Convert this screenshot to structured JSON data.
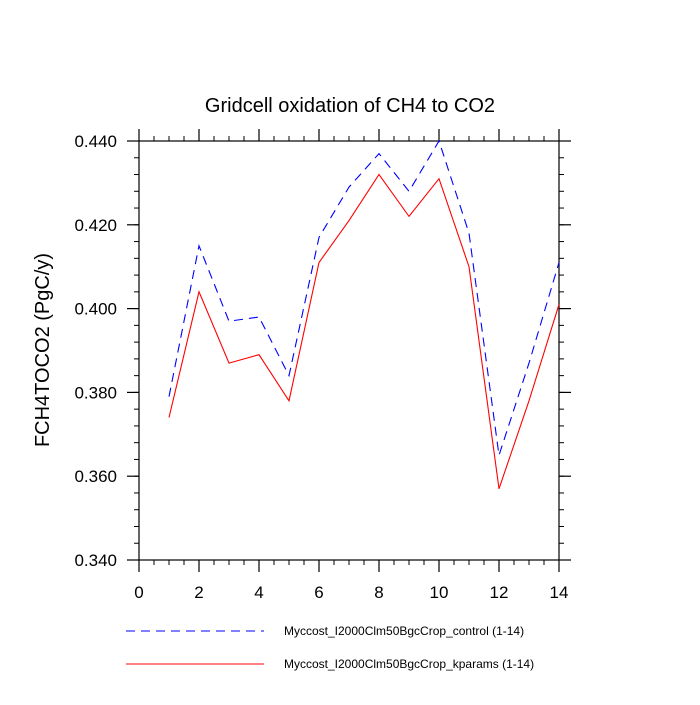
{
  "chart_data": {
    "type": "line",
    "title": "Gridcell oxidation of CH4 to CO2",
    "xlabel": "",
    "ylabel": "FCH4TOCO2  (PgC/y)",
    "xlim": [
      0,
      14
    ],
    "ylim": [
      0.34,
      0.44
    ],
    "x_ticks": [
      0,
      2,
      4,
      6,
      8,
      10,
      12,
      14
    ],
    "x_tick_labels": [
      "0",
      "2",
      "4",
      "6",
      "8",
      "10",
      "12",
      "14"
    ],
    "y_ticks": [
      0.34,
      0.36,
      0.38,
      0.4,
      0.42,
      0.44
    ],
    "y_tick_labels": [
      "0.340",
      "0.360",
      "0.380",
      "0.400",
      "0.420",
      "0.440"
    ],
    "x": [
      1,
      2,
      3,
      4,
      5,
      6,
      7,
      8,
      9,
      10,
      11,
      12,
      13,
      14
    ],
    "series": [
      {
        "name": "Myccost_I2000Clm50BgcCrop_control (1-14)",
        "color": "#0000ff",
        "dash": "dashed",
        "values": [
          0.379,
          0.415,
          0.397,
          0.398,
          0.384,
          0.417,
          0.429,
          0.437,
          0.428,
          0.44,
          0.418,
          0.365,
          0.387,
          0.411
        ]
      },
      {
        "name": "Myccost_I2000Clm50BgcCrop_kparams (1-14)",
        "color": "#ff0000",
        "dash": "solid",
        "values": [
          0.374,
          0.404,
          0.387,
          0.389,
          0.378,
          0.411,
          0.421,
          0.432,
          0.422,
          0.431,
          0.41,
          0.357,
          0.378,
          0.401
        ]
      }
    ]
  }
}
